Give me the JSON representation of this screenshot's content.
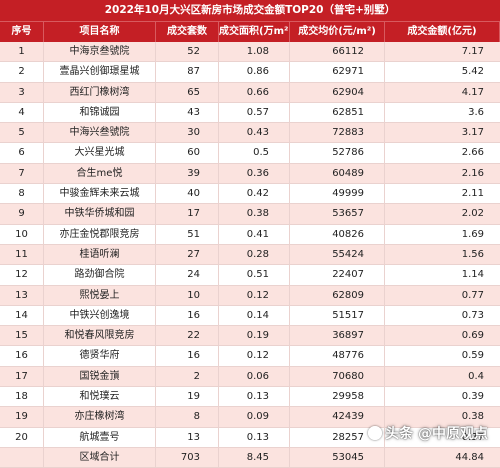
{
  "title": "2022年10月大兴区新房市场成交金额TOP20（普宅+别墅）",
  "columns": [
    "序号",
    "项目名称",
    "成交套数",
    "成交面积(万m²)",
    "成交均价(元/m²)",
    "成交金额(亿元)"
  ],
  "rows": [
    {
      "no": "1",
      "name": "中海京叁號院",
      "units": "52",
      "area": "1.08",
      "price": "66112",
      "amount": "7.17"
    },
    {
      "no": "2",
      "name": "壹晶兴创御璟星城",
      "units": "87",
      "area": "0.86",
      "price": "62971",
      "amount": "5.42"
    },
    {
      "no": "3",
      "name": "西红门橡树湾",
      "units": "65",
      "area": "0.66",
      "price": "62904",
      "amount": "4.17"
    },
    {
      "no": "4",
      "name": "和锦诚园",
      "units": "43",
      "area": "0.57",
      "price": "62851",
      "amount": "3.6"
    },
    {
      "no": "5",
      "name": "中海兴叁號院",
      "units": "30",
      "area": "0.43",
      "price": "72883",
      "amount": "3.17"
    },
    {
      "no": "6",
      "name": "大兴星光城",
      "units": "60",
      "area": "0.5",
      "price": "52786",
      "amount": "2.66"
    },
    {
      "no": "7",
      "name": "合生me悦",
      "units": "39",
      "area": "0.36",
      "price": "60489",
      "amount": "2.16"
    },
    {
      "no": "8",
      "name": "中骏金辉未来云城",
      "units": "40",
      "area": "0.42",
      "price": "49999",
      "amount": "2.11"
    },
    {
      "no": "9",
      "name": "中铁华侨城和园",
      "units": "17",
      "area": "0.38",
      "price": "53657",
      "amount": "2.02"
    },
    {
      "no": "10",
      "name": "亦庄金悦郡限竞房",
      "units": "51",
      "area": "0.41",
      "price": "40826",
      "amount": "1.69"
    },
    {
      "no": "11",
      "name": "桂语听澜",
      "units": "27",
      "area": "0.28",
      "price": "55424",
      "amount": "1.56"
    },
    {
      "no": "12",
      "name": "路劲御合院",
      "units": "24",
      "area": "0.51",
      "price": "22407",
      "amount": "1.14"
    },
    {
      "no": "13",
      "name": "熙悦晏上",
      "units": "10",
      "area": "0.12",
      "price": "62809",
      "amount": "0.77"
    },
    {
      "no": "14",
      "name": "中铁兴创逸境",
      "units": "16",
      "area": "0.14",
      "price": "51517",
      "amount": "0.73"
    },
    {
      "no": "15",
      "name": "和悦春风限竞房",
      "units": "22",
      "area": "0.19",
      "price": "36897",
      "amount": "0.69"
    },
    {
      "no": "16",
      "name": "德贤华府",
      "units": "16",
      "area": "0.12",
      "price": "48776",
      "amount": "0.59"
    },
    {
      "no": "17",
      "name": "国锐金嵿",
      "units": "2",
      "area": "0.06",
      "price": "70680",
      "amount": "0.4"
    },
    {
      "no": "18",
      "name": "和悦璞云",
      "units": "19",
      "area": "0.13",
      "price": "29958",
      "amount": "0.39"
    },
    {
      "no": "19",
      "name": "亦庄橡树湾",
      "units": "8",
      "area": "0.09",
      "price": "42439",
      "amount": "0.38"
    },
    {
      "no": "20",
      "name": "航城壹号",
      "units": "13",
      "area": "0.13",
      "price": "28257",
      "amount": "0.37"
    }
  ],
  "total": {
    "label": "区域合计",
    "units": "703",
    "area": "8.45",
    "price": "53045",
    "amount": "44.84"
  },
  "watermark": "头条 @中原观点",
  "colors": {
    "header": "#c41f25",
    "stripe": "#fbe3df"
  }
}
